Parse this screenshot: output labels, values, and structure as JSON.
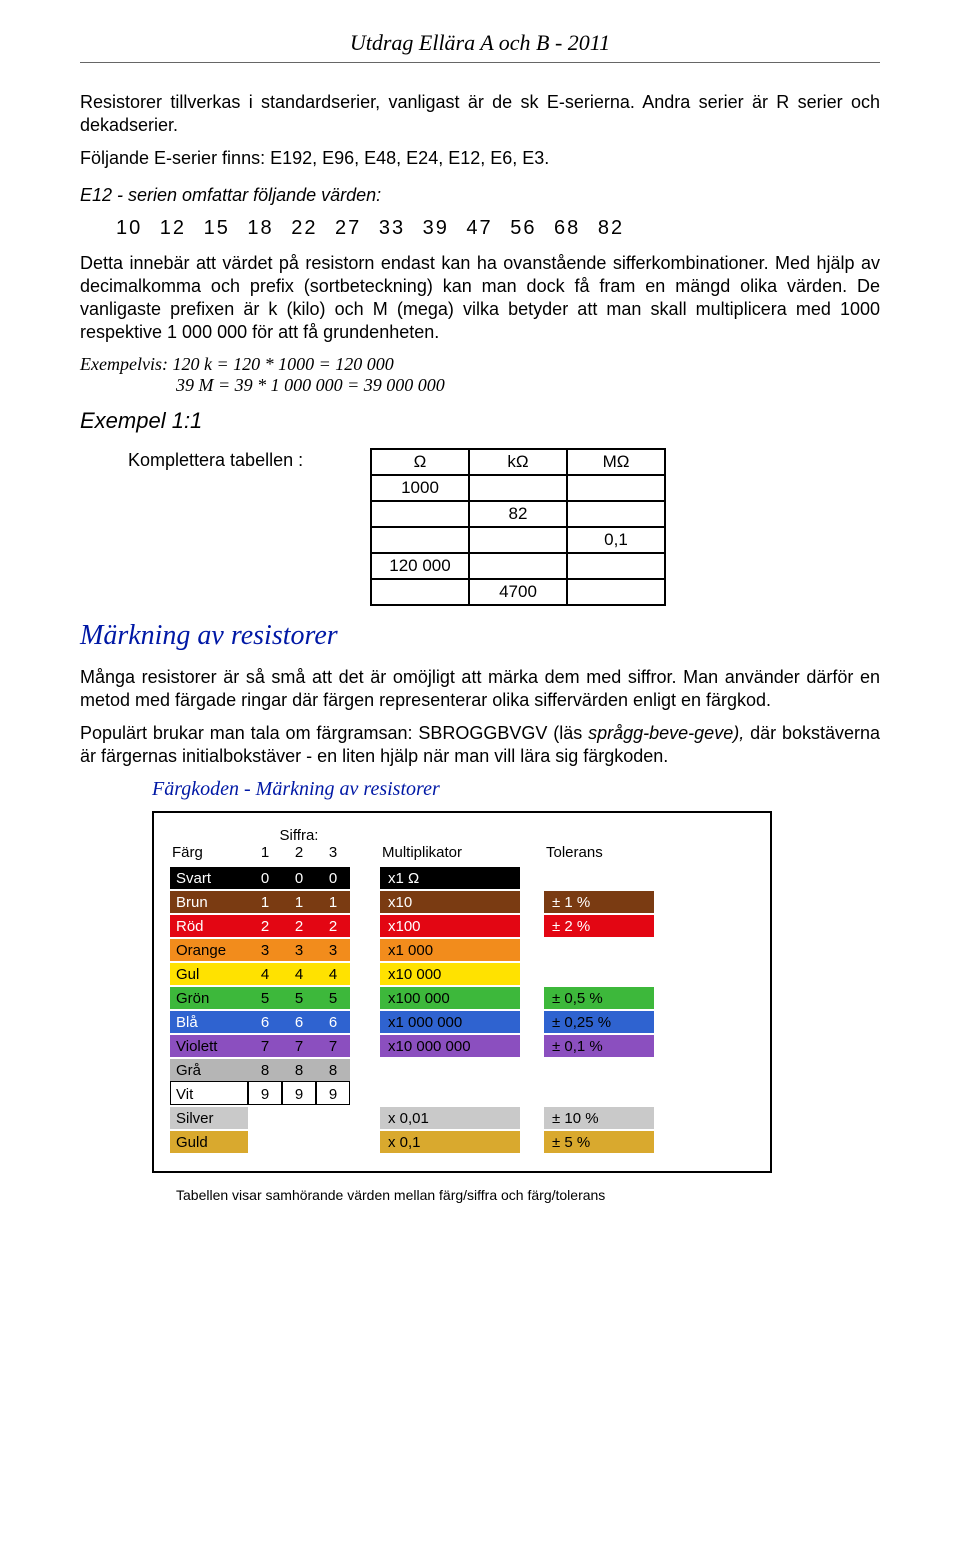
{
  "header": {
    "title": "Utdrag Ellära A och B  -  2011"
  },
  "intro": {
    "p1": "Resistorer tillverkas i standardserier, vanligast är de sk E-serierna. Andra serier är R serier och dekadserier.",
    "p2": "Följande E-serier finns: E192, E96, E48, E24, E12, E6, E3.",
    "p3": "E12 - serien omfattar följande värden:",
    "e12": "10  12  15  18  22  27  33  39  47  56  68  82",
    "p4": "Detta innebär att värdet på resistorn endast kan ha ovanstående sifferkombinationer. Med hjälp av decimalkomma och prefix (sortbeteckning) kan man dock få fram en mängd olika värden. De vanligaste prefixen är k (kilo) och M (mega) vilka betyder att man skall multiplicera med 1000 respektive 1 000 000 för att få grundenheten.",
    "ex1": "Exempelvis:  120 k  = 120 * 1000 = 120 000",
    "ex2": "39 M  = 39 * 1 000 000  = 39 000 000"
  },
  "example11": {
    "heading": "Exempel 1:1",
    "label": "Komplettera tabellen :",
    "table": {
      "headers": [
        "Ω",
        "kΩ",
        "MΩ"
      ],
      "rows": [
        [
          "1000",
          "",
          ""
        ],
        [
          "",
          "82",
          ""
        ],
        [
          "",
          "",
          "0,1"
        ],
        [
          "120 000",
          "",
          ""
        ],
        [
          "",
          "4700",
          ""
        ]
      ]
    }
  },
  "marking": {
    "title": "Märkning av resistorer",
    "p1": "Många resistorer är så små att det är omöjligt att märka dem med siffror. Man använder därför en metod med färgade ringar där färgen representerar olika siffervärden enligt en färgkod.",
    "p2a": "Populärt brukar man tala om färgramsan: SBROGGBVGV (läs ",
    "p2b": "språgg-beve-geve),",
    "p2c": " där bokstäverna är färgernas initialbokstäver - en liten hjälp när man vill lära sig färgkoden."
  },
  "colortable": {
    "title": "Färgkoden - Märkning av resistorer",
    "headers": {
      "farg": "Färg",
      "siffra": "Siffra:",
      "d1": "1",
      "d2": "2",
      "d3": "3",
      "mult": "Multiplikator",
      "tol": "Tolerans"
    },
    "rows": [
      {
        "name": "Svart",
        "bg": "#000000",
        "fg": "#ffffff",
        "d": [
          "0",
          "0",
          "0"
        ],
        "dfg": "#ffffff",
        "mult": "x1 Ω",
        "multfg": "#ffffff",
        "tol": "",
        "tolbg": ""
      },
      {
        "name": "Brun",
        "bg": "#7a3b12",
        "fg": "#ffffff",
        "d": [
          "1",
          "1",
          "1"
        ],
        "dfg": "#ffffff",
        "mult": "x10",
        "multfg": "#ffffff",
        "tol": "± 1 %",
        "tolbg": "#7a3b12",
        "tolfg": "#ffffff"
      },
      {
        "name": "Röd",
        "bg": "#e30613",
        "fg": "#ffffff",
        "d": [
          "2",
          "2",
          "2"
        ],
        "dfg": "#ffffff",
        "mult": "x100",
        "multfg": "#ffffff",
        "tol": "± 2 %",
        "tolbg": "#e30613",
        "tolfg": "#ffffff"
      },
      {
        "name": "Orange",
        "bg": "#f28c1c",
        "fg": "#000000",
        "d": [
          "3",
          "3",
          "3"
        ],
        "dfg": "#000000",
        "mult": "x1 000",
        "multfg": "#000000",
        "tol": "",
        "tolbg": ""
      },
      {
        "name": "Gul",
        "bg": "#ffe200",
        "fg": "#000000",
        "d": [
          "4",
          "4",
          "4"
        ],
        "dfg": "#000000",
        "mult": "x10 000",
        "multfg": "#000000",
        "tol": "",
        "tolbg": ""
      },
      {
        "name": "Grön",
        "bg": "#3db83b",
        "fg": "#000000",
        "d": [
          "5",
          "5",
          "5"
        ],
        "dfg": "#000000",
        "mult": "x100 000",
        "multfg": "#000000",
        "tol": "± 0,5 %",
        "tolbg": "#3db83b",
        "tolfg": "#000000"
      },
      {
        "name": "Blå",
        "bg": "#2f63d0",
        "fg": "#ffffff",
        "d": [
          "6",
          "6",
          "6"
        ],
        "dfg": "#ffffff",
        "mult": "x1 000 000",
        "multfg": "#000000",
        "tol": "± 0,25 %",
        "tolbg": "#2f63d0",
        "tolfg": "#000000"
      },
      {
        "name": "Violett",
        "bg": "#8b4fbf",
        "fg": "#000000",
        "d": [
          "7",
          "7",
          "7"
        ],
        "dfg": "#000000",
        "mult": "x10 000 000",
        "multfg": "#000000",
        "tol": "± 0,1 %",
        "tolbg": "#8b4fbf",
        "tolfg": "#000000"
      },
      {
        "name": "Grå",
        "bg": "#b5b5b5",
        "fg": "#000000",
        "d": [
          "8",
          "8",
          "8"
        ],
        "dfg": "#000000",
        "mult": "",
        "multfg": "",
        "tol": "",
        "tolbg": ""
      },
      {
        "name": "Vit",
        "bg": "#ffffff",
        "fg": "#000000",
        "d": [
          "9",
          "9",
          "9"
        ],
        "dfg": "#000000",
        "mult": "",
        "multfg": "",
        "tol": "",
        "tolbg": "",
        "border": "#000000"
      },
      {
        "name": "Silver",
        "bg": "#c9c9c9",
        "fg": "#000000",
        "d": [
          "",
          "",
          ""
        ],
        "dfg": "",
        "mult": "x 0,01",
        "multfg": "#000000",
        "tol": "± 10 %",
        "tolbg": "#c9c9c9",
        "tolfg": "#000000"
      },
      {
        "name": "Guld",
        "bg": "#d9a92e",
        "fg": "#000000",
        "d": [
          "",
          "",
          ""
        ],
        "dfg": "",
        "mult": "x 0,1",
        "multfg": "#000000",
        "tol": "± 5 %",
        "tolbg": "#d9a92e",
        "tolfg": "#000000"
      }
    ],
    "caption": "Tabellen visar samhörande värden mellan färg/siffra och färg/tolerans"
  }
}
